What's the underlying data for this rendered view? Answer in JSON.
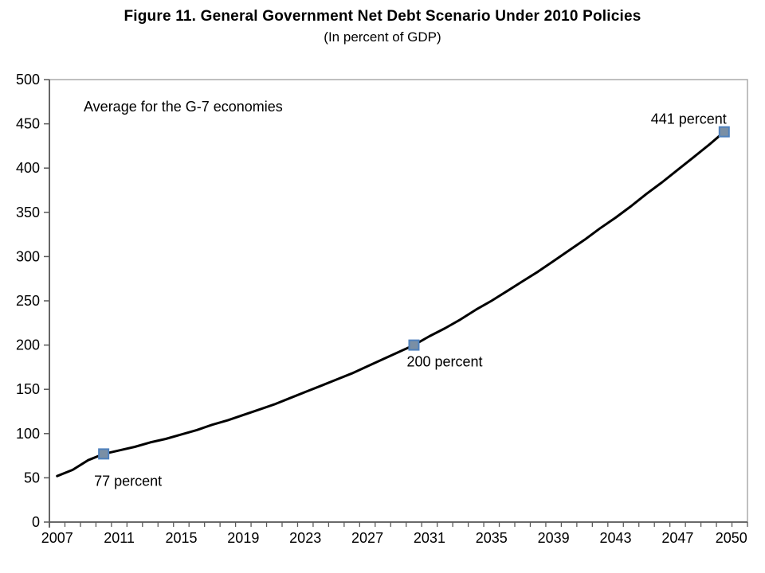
{
  "title": "Figure 11. General Government Net Debt Scenario Under 2010 Policies",
  "subtitle": "(In percent of GDP)",
  "chart_data": {
    "type": "line",
    "title": "Figure 11. General Government Net Debt Scenario Under 2010 Policies",
    "subtitle": "(In percent of GDP)",
    "inner_annotation": "Average for the G-7 economies",
    "xlabel": "",
    "ylabel": "",
    "ylim": [
      0,
      500
    ],
    "y_ticks": [
      0,
      50,
      100,
      150,
      200,
      250,
      300,
      350,
      400,
      450,
      500
    ],
    "x_tick_labels": [
      "2007",
      "2011",
      "2015",
      "2019",
      "2023",
      "2027",
      "2031",
      "2035",
      "2039",
      "2043",
      "2047",
      "2050"
    ],
    "grid": false,
    "legend": "none",
    "x": [
      2007,
      2008,
      2009,
      2010,
      2011,
      2012,
      2013,
      2014,
      2015,
      2016,
      2017,
      2018,
      2019,
      2020,
      2021,
      2022,
      2023,
      2024,
      2025,
      2026,
      2027,
      2028,
      2029,
      2030,
      2031,
      2032,
      2033,
      2034,
      2035,
      2036,
      2037,
      2038,
      2039,
      2040,
      2041,
      2042,
      2043,
      2044,
      2045,
      2046,
      2047,
      2048,
      2049,
      2050
    ],
    "series": [
      {
        "name": "G-7 average net debt (percent of GDP)",
        "values": [
          52,
          59,
          70,
          77,
          81,
          85,
          90,
          94,
          99,
          104,
          110,
          115,
          121,
          127,
          133,
          140,
          147,
          154,
          161,
          168,
          176,
          184,
          192,
          200,
          210,
          219,
          229,
          240,
          250,
          261,
          272,
          283,
          295,
          307,
          319,
          332,
          344,
          357,
          371,
          384,
          398,
          412,
          426,
          441
        ]
      }
    ],
    "data_labels": [
      {
        "year": 2010,
        "value": 77,
        "label": "77 percent"
      },
      {
        "year": 2030,
        "value": 200,
        "label": "200 percent"
      },
      {
        "year": 2050,
        "value": 441,
        "label": "441 percent"
      }
    ],
    "colors": {
      "line": "#000000",
      "marker_fill": "#7a8fa5",
      "marker_stroke": "#4f81bd",
      "axis": "#595959",
      "plot_border": "#a6a6a6",
      "text": "#000000",
      "background": "#ffffff"
    }
  }
}
